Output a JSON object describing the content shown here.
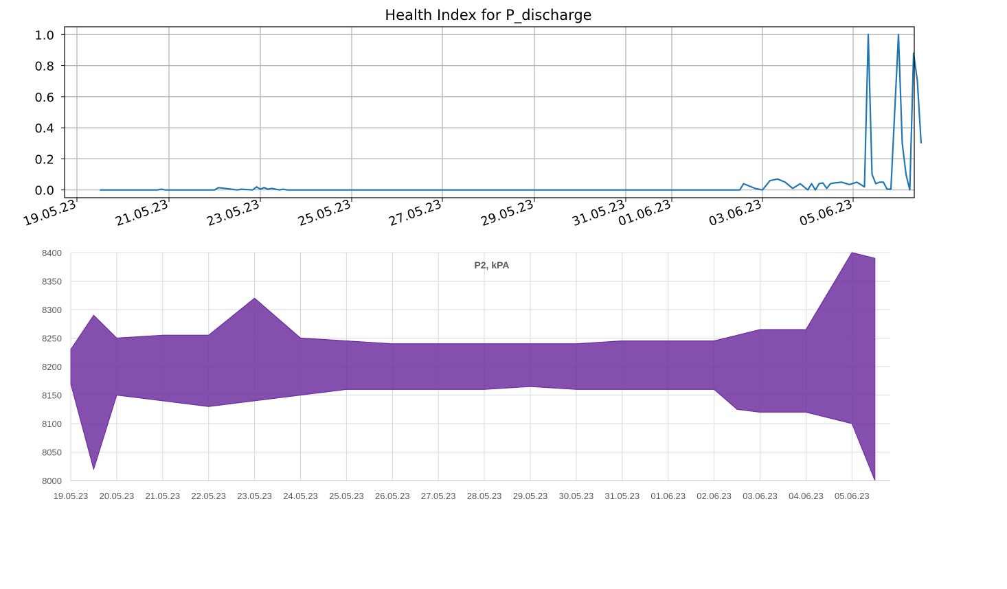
{
  "chart_data": [
    {
      "type": "line",
      "title": "Health Index for P_discharge",
      "xlabel": "",
      "ylabel": "",
      "ylim": [
        -0.05,
        1.05
      ],
      "grid": true,
      "legend": "none",
      "x_ticks": [
        "19.05.23",
        "21.05.23",
        "23.05.23",
        "25.05.23",
        "27.05.23",
        "29.05.23",
        "31.05.23",
        "01.06.23",
        "03.06.23",
        "05.06.23"
      ],
      "y_ticks": [
        "0.0",
        "0.2",
        "0.4",
        "0.6",
        "0.8",
        "1.0"
      ],
      "y_tick_values": [
        0,
        0.2,
        0.4,
        0.6,
        0.8,
        1.0
      ],
      "color": "#1f77b4",
      "series": [
        {
          "x": [
            "19.05.23 12:00",
            "20.05.23 18:00",
            "20.05.23 20:00",
            "20.05.23 22:00",
            "21.05.23 00:00",
            "22.05.23 00:00",
            "22.05.23 02:00",
            "22.05.23 12:00",
            "22.05.23 14:00",
            "22.05.23 20:00",
            "22.05.23 22:00",
            "23.05.23 00:00",
            "23.05.23 02:00",
            "23.05.23 04:00",
            "23.05.23 06:00",
            "23.05.23 10:00",
            "23.05.23 12:00",
            "23.05.23 14:00",
            "02.06.23 12:00",
            "02.06.23 14:00",
            "02.06.23 20:00",
            "03.06.23 00:00",
            "03.06.23 04:00",
            "03.06.23 08:00",
            "03.06.23 12:00",
            "03.06.23 16:00",
            "03.06.23 20:00",
            "04.06.23 00:00",
            "04.06.23 02:00",
            "04.06.23 04:00",
            "04.06.23 06:00",
            "04.06.23 08:00",
            "04.06.23 10:00",
            "04.06.23 12:00",
            "04.06.23 14:00",
            "04.06.23 18:00",
            "04.06.23 22:00",
            "05.06.23 02:00",
            "05.06.23 06:00",
            "05.06.23 08:00",
            "05.06.23 10:00",
            "05.06.23 12:00",
            "05.06.23 14:00",
            "05.06.23 16:00",
            "05.06.23 18:00",
            "05.06.23 20:00",
            "06.06.23 00:00",
            "06.06.23 02:00",
            "06.06.23 04:00",
            "06.06.23 06:00",
            "06.06.23 08:00",
            "06.06.23 10:00",
            "06.06.23 12:00"
          ],
          "y": [
            0.0,
            0.0,
            0.005,
            0.0,
            0.0,
            0.0,
            0.015,
            0.0,
            0.005,
            0.0,
            0.02,
            0.005,
            0.015,
            0.005,
            0.01,
            0.0,
            0.005,
            0.0,
            0.0,
            0.04,
            0.01,
            0.0,
            0.06,
            0.07,
            0.05,
            0.01,
            0.04,
            0.0,
            0.04,
            0.0,
            0.04,
            0.045,
            0.01,
            0.04,
            0.045,
            0.05,
            0.035,
            0.05,
            0.02,
            1.0,
            0.1,
            0.04,
            0.05,
            0.05,
            0.005,
            0.005,
            1.0,
            0.3,
            0.1,
            0.0,
            0.88,
            0.7,
            0.3
          ]
        }
      ]
    },
    {
      "type": "line",
      "title": "P2, kPA",
      "xlabel": "",
      "ylabel": "",
      "ylim": [
        8000,
        8400
      ],
      "grid": true,
      "legend": "none",
      "x_ticks": [
        "19.05.23",
        "20.05.23",
        "21.05.23",
        "22.05.23",
        "23.05.23",
        "24.05.23",
        "25.05.23",
        "26.05.23",
        "27.05.23",
        "28.05.23",
        "29.05.23",
        "30.05.23",
        "31.05.23",
        "01.06.23",
        "02.06.23",
        "03.06.23",
        "04.06.23",
        "05.06.23"
      ],
      "y_ticks": [
        "8000",
        "8050",
        "8100",
        "8150",
        "8200",
        "8250",
        "8300",
        "8350",
        "8400"
      ],
      "y_tick_values": [
        8000,
        8050,
        8100,
        8150,
        8200,
        8250,
        8300,
        8350,
        8400
      ],
      "color": "#7030a0",
      "series": [
        {
          "x": [
            "19.05.23",
            "19.05.23 12:00",
            "20.05.23",
            "21.05.23",
            "22.05.23",
            "23.05.23",
            "24.05.23",
            "25.05.23",
            "26.05.23",
            "27.05.23",
            "28.05.23",
            "29.05.23",
            "30.05.23",
            "31.05.23",
            "01.06.23",
            "02.06.23",
            "02.06.23 12:00",
            "03.06.23",
            "04.06.23",
            "05.06.23",
            "05.06.23 12:00"
          ],
          "y_min": [
            8170,
            8020,
            8150,
            8140,
            8130,
            8140,
            8150,
            8160,
            8160,
            8160,
            8160,
            8165,
            8160,
            8160,
            8160,
            8160,
            8125,
            8120,
            8120,
            8100,
            8000
          ],
          "y_max": [
            8230,
            8290,
            8250,
            8255,
            8255,
            8320,
            8250,
            8245,
            8240,
            8240,
            8240,
            8240,
            8240,
            8245,
            8245,
            8245,
            8255,
            8265,
            8265,
            8400,
            8390
          ]
        }
      ]
    }
  ]
}
